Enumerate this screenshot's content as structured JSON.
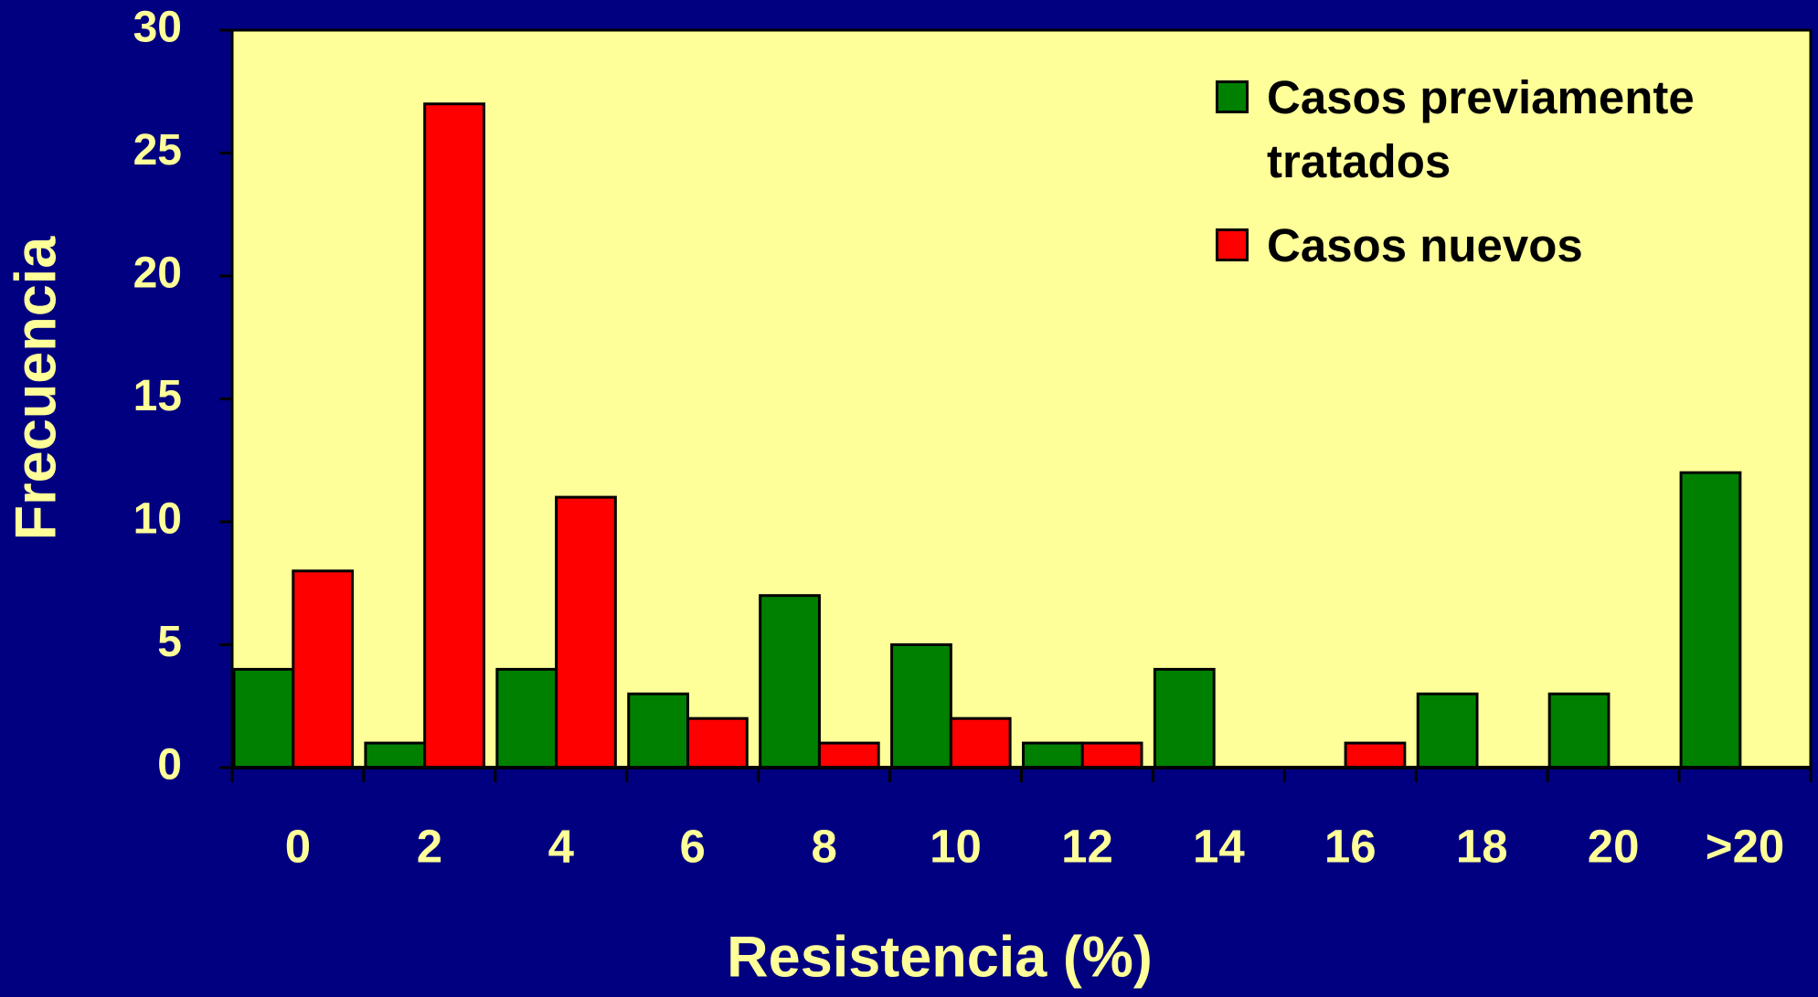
{
  "chart_data": {
    "type": "bar",
    "x_label": "Resistencia (%)",
    "y_label": "Frecuencia",
    "categories": [
      "0",
      "2",
      "4",
      "6",
      "8",
      "10",
      "12",
      "14",
      "16",
      "18",
      "20",
      ">20"
    ],
    "series": [
      {
        "name": "Casos previamente tratados",
        "color": "#008000",
        "values": [
          4,
          1,
          4,
          3,
          7,
          5,
          1,
          4,
          0,
          3,
          3,
          12
        ]
      },
      {
        "name": "Casos nuevos",
        "color": "#ff0000",
        "values": [
          8,
          27,
          11,
          2,
          1,
          2,
          1,
          0,
          1,
          0,
          0,
          0
        ]
      }
    ],
    "ylim": [
      0,
      30
    ],
    "yticks": [
      0,
      5,
      10,
      15,
      20,
      25,
      30
    ],
    "legend": "upper right"
  }
}
